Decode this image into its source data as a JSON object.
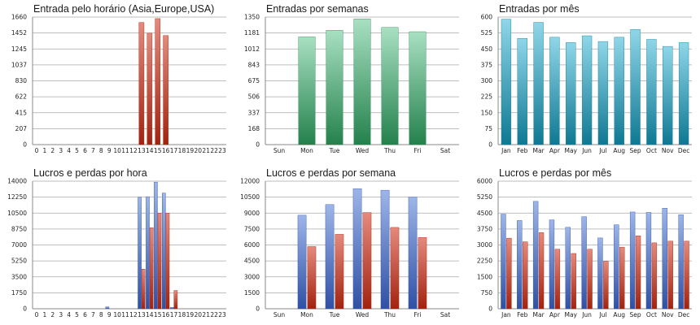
{
  "chart_data": [
    {
      "type": "bar",
      "title": "Entrada pelo horário (Asia,Europe,USA)",
      "categories": [
        "0",
        "1",
        "2",
        "3",
        "4",
        "5",
        "6",
        "7",
        "8",
        "9",
        "10",
        "11",
        "12",
        "13",
        "14",
        "15",
        "16",
        "17",
        "18",
        "19",
        "20",
        "21",
        "22",
        "23"
      ],
      "yticks": [
        "0",
        "207",
        "415",
        "622",
        "830",
        "1037",
        "1245",
        "1452",
        "1660"
      ],
      "ylim": [
        0,
        1660
      ],
      "series": [
        {
          "color": "red",
          "values": [
            0,
            0,
            0,
            0,
            0,
            0,
            0,
            0,
            0,
            0,
            0,
            0,
            0,
            1590,
            1450,
            1640,
            1420,
            0,
            0,
            0,
            0,
            0,
            0,
            0
          ]
        }
      ]
    },
    {
      "type": "bar",
      "title": "Entradas por semanas",
      "categories": [
        "Sun",
        "Mon",
        "Tue",
        "Wed",
        "Thu",
        "Fri",
        "Sat"
      ],
      "yticks": [
        "0",
        "168",
        "337",
        "506",
        "675",
        "843",
        "1012",
        "1181",
        "1350"
      ],
      "ylim": [
        0,
        1350
      ],
      "series": [
        {
          "color": "green",
          "values": [
            0,
            1140,
            1210,
            1330,
            1240,
            1195,
            0
          ]
        }
      ]
    },
    {
      "type": "bar",
      "title": "Entradas por mês",
      "categories": [
        "Jan",
        "Feb",
        "Mar",
        "Apr",
        "May",
        "Jun",
        "Jul",
        "Aug",
        "Sep",
        "Oct",
        "Nov",
        "Dec"
      ],
      "yticks": [
        "0",
        "75",
        "150",
        "225",
        "300",
        "375",
        "450",
        "525",
        "600"
      ],
      "ylim": [
        0,
        600
      ],
      "series": [
        {
          "color": "cyan",
          "values": [
            590,
            500,
            575,
            505,
            480,
            512,
            485,
            505,
            542,
            495,
            462,
            480
          ]
        }
      ]
    },
    {
      "type": "bar",
      "title": "Lucros e perdas por hora",
      "categories": [
        "0",
        "1",
        "2",
        "3",
        "4",
        "5",
        "6",
        "7",
        "8",
        "9",
        "10",
        "11",
        "12",
        "13",
        "14",
        "15",
        "16",
        "17",
        "18",
        "19",
        "20",
        "21",
        "22",
        "23"
      ],
      "yticks": [
        "0",
        "1750",
        "3500",
        "5250",
        "7000",
        "8750",
        "10500",
        "12250",
        "14000"
      ],
      "ylim": [
        0,
        14000
      ],
      "series": [
        {
          "color": "blue",
          "values": [
            0,
            0,
            0,
            0,
            0,
            0,
            0,
            0,
            0,
            200,
            0,
            0,
            0,
            12250,
            12300,
            13900,
            12700,
            150,
            0,
            0,
            0,
            0,
            0,
            0
          ]
        },
        {
          "color": "red",
          "values": [
            0,
            0,
            0,
            0,
            0,
            0,
            0,
            0,
            0,
            0,
            0,
            0,
            0,
            4350,
            8900,
            10500,
            10500,
            2000,
            0,
            0,
            0,
            0,
            0,
            0
          ]
        }
      ]
    },
    {
      "type": "bar",
      "title": "Lucros e perdas por semana",
      "categories": [
        "Sun",
        "Mon",
        "Tue",
        "Wed",
        "Thu",
        "Fri",
        "Sat"
      ],
      "yticks": [
        "0",
        "1500",
        "3000",
        "4500",
        "6000",
        "7500",
        "9000",
        "10500",
        "12000"
      ],
      "ylim": [
        0,
        12000
      ],
      "series": [
        {
          "color": "blue",
          "values": [
            0,
            8800,
            9800,
            11300,
            11150,
            10500,
            0
          ]
        },
        {
          "color": "red",
          "values": [
            0,
            5850,
            7000,
            9050,
            7650,
            6700,
            0
          ]
        }
      ]
    },
    {
      "type": "bar",
      "title": "Lucros e perdas por mês",
      "categories": [
        "Jan",
        "Feb",
        "Mar",
        "Apr",
        "May",
        "Jun",
        "Jul",
        "Aug",
        "Sep",
        "Oct",
        "Nov",
        "Dec"
      ],
      "yticks": [
        "0",
        "750",
        "1500",
        "2250",
        "3000",
        "3750",
        "4500",
        "5250",
        "6000"
      ],
      "ylim": [
        0,
        6000
      ],
      "series": [
        {
          "color": "blue",
          "values": [
            4450,
            4150,
            5050,
            4180,
            3830,
            4330,
            3330,
            3950,
            4550,
            4530,
            4730,
            4420
          ]
        },
        {
          "color": "red",
          "values": [
            3320,
            3150,
            3580,
            2800,
            2600,
            2800,
            2230,
            2900,
            3430,
            3100,
            3180,
            3180
          ]
        }
      ]
    }
  ]
}
